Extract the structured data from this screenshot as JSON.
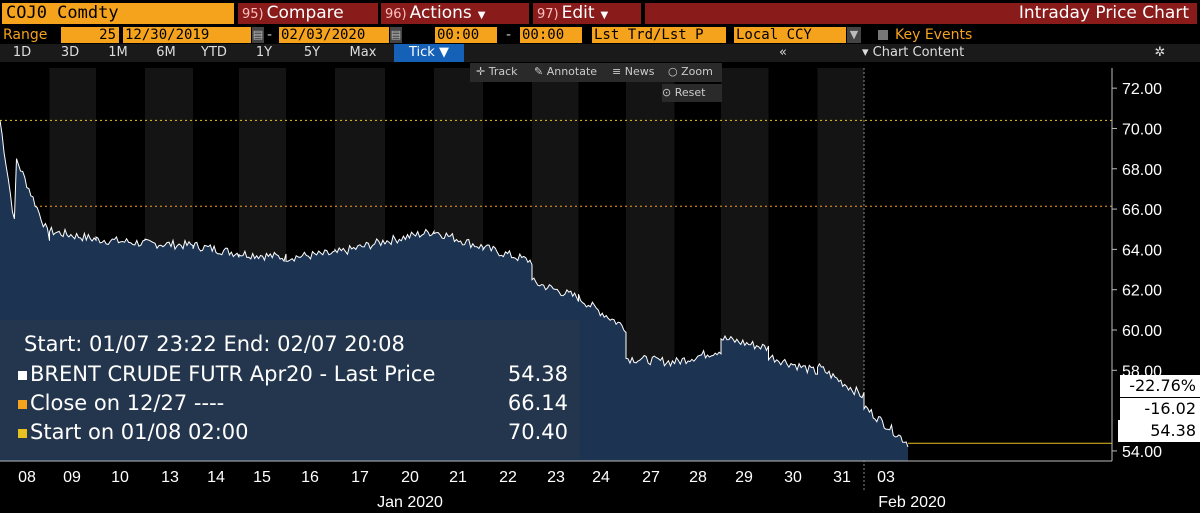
{
  "header": {
    "ticker": "COJ0 Comdty",
    "compare_num": "95)",
    "compare_label": "Compare",
    "actions_num": "96)",
    "actions_label": "Actions",
    "edit_num": "97)",
    "edit_label": "Edit",
    "title": "Intraday Price Chart"
  },
  "range_row": {
    "range_label": "Range",
    "bars": "25",
    "start_date": "12/30/2019",
    "end_date": "02/03/2020",
    "start_time": "00:00",
    "end_time": "00:00",
    "price_field": "Lst Trd/Lst P",
    "currency": "Local CCY",
    "key_events_label": "Key Events"
  },
  "period_row": {
    "periods": [
      "1D",
      "3D",
      "1M",
      "6M",
      "YTD",
      "1Y",
      "5Y",
      "Max"
    ],
    "active": "Tick",
    "chart_content_label": "Chart Content"
  },
  "tools": {
    "track": "Track",
    "annotate": "Annotate",
    "news": "News",
    "zoom": "Zoom",
    "reset": "Reset"
  },
  "legend": {
    "range_text": "Start: 01/07 23:22 End: 02/07 20:08",
    "series": [
      {
        "label": "BRENT CRUDE FUTR Apr20 - Last Price",
        "value": "54.38",
        "color": "#ffffff"
      },
      {
        "label": "Close on 12/27 ----",
        "value": "66.14",
        "color": "#f5a21d"
      },
      {
        "label": "Start on 01/08 02:00",
        "value": "70.40",
        "color": "#e8c020"
      }
    ]
  },
  "right_labels": {
    "pct_change": "-22.76%",
    "abs_change": "-16.02",
    "last": "54.38"
  },
  "colors": {
    "accent_orange": "#f5a21d",
    "header_red": "#8a1b1b",
    "area_fill": "#1c3352",
    "line": "#ffffff",
    "ref_line": "#e8c020"
  },
  "chart_data": {
    "type": "area",
    "title": "Intraday Price Chart",
    "series_name": "BRENT CRUDE FUTR Apr20 - Last Price",
    "x_ticks": [
      "08",
      "09",
      "10",
      "13",
      "14",
      "15",
      "16",
      "17",
      "20",
      "21",
      "22",
      "23",
      "24",
      "27",
      "28",
      "29",
      "30",
      "31",
      "03"
    ],
    "x_group_labels": [
      "Jan 2020",
      "Feb 2020"
    ],
    "y_ticks": [
      "72.00",
      "70.00",
      "68.00",
      "66.00",
      "64.00",
      "62.00",
      "60.00",
      "58.00",
      "54.00"
    ],
    "ylim": [
      53.5,
      73
    ],
    "points": [
      {
        "day": "08",
        "open": 70.4,
        "close": 64.6
      },
      {
        "day": "09",
        "open": 64.9,
        "close": 64.5
      },
      {
        "day": "10",
        "open": 64.5,
        "close": 64.3
      },
      {
        "day": "13",
        "open": 64.3,
        "close": 64.2
      },
      {
        "day": "14",
        "open": 64.2,
        "close": 63.8
      },
      {
        "day": "15",
        "open": 63.8,
        "close": 63.6
      },
      {
        "day": "16",
        "open": 63.6,
        "close": 63.8
      },
      {
        "day": "17",
        "open": 63.8,
        "close": 64.4
      },
      {
        "day": "20",
        "open": 64.4,
        "close": 64.9
      },
      {
        "day": "21",
        "open": 64.9,
        "close": 64.1
      },
      {
        "day": "22",
        "open": 64.1,
        "close": 63.4
      },
      {
        "day": "23",
        "open": 62.4,
        "close": 61.6
      },
      {
        "day": "24",
        "open": 61.6,
        "close": 60.1
      },
      {
        "day": "27",
        "open": 58.6,
        "close": 58.4
      },
      {
        "day": "28",
        "open": 58.4,
        "close": 59.0
      },
      {
        "day": "29",
        "open": 59.6,
        "close": 59.1
      },
      {
        "day": "30",
        "open": 58.7,
        "close": 57.9
      },
      {
        "day": "31",
        "open": 58.2,
        "close": 56.7
      },
      {
        "day": "03",
        "open": 56.2,
        "close": 54.38
      }
    ],
    "reference_lines": [
      {
        "name": "Close on 12/27",
        "value": 66.14
      },
      {
        "name": "Start on 01/08 02:00",
        "value": 70.4
      }
    ],
    "last_value": 54.38
  }
}
